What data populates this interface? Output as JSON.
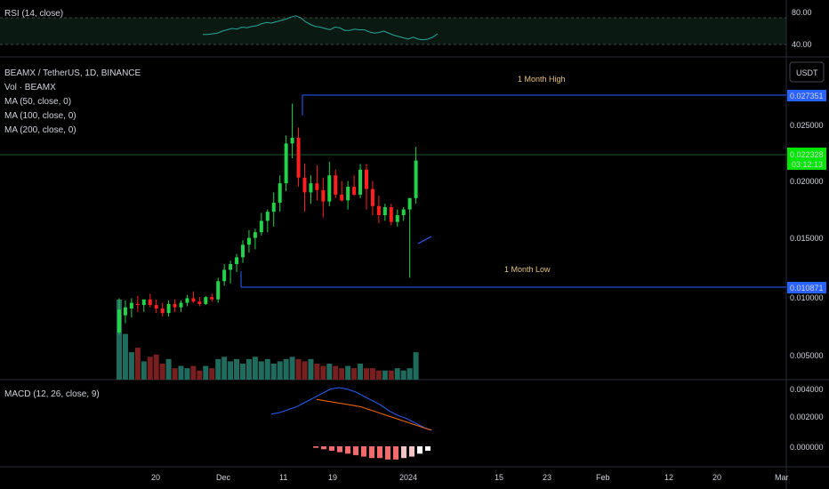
{
  "rsi": {
    "label": "RSI (14, close)",
    "levels": [
      "80.00",
      "40.00"
    ],
    "line_color": "#26a69a",
    "values": [
      55,
      55,
      56,
      57,
      60,
      62,
      64,
      63,
      66,
      65,
      67,
      68,
      71,
      73,
      72,
      74,
      76,
      78,
      81,
      83,
      80,
      74,
      70,
      67,
      66,
      64,
      62,
      66,
      65,
      61,
      61,
      63,
      62,
      62,
      59,
      57,
      58,
      60,
      57,
      54,
      52,
      50,
      48,
      51,
      48,
      47,
      48,
      51,
      56
    ]
  },
  "main": {
    "title": "BEAMX / TetherUS, 1D, BINANCE",
    "indicators": [
      "Vol · BEAMX",
      "MA (50, close, 0)",
      "MA (100, close, 0)",
      "MA (200, close, 0)"
    ],
    "currency_button": "USDT",
    "price_labels": [
      "0.025000",
      "0.020000",
      "0.015000",
      "0.010000",
      "0.005000"
    ],
    "month_high_label": "1 Month High",
    "month_low_label": "1 Month Low",
    "month_high_value": "0.027351",
    "month_low_value": "0.010871",
    "last_price": "0.022328",
    "countdown": "03:12:13"
  },
  "macd": {
    "label": "MACD (12, 26, close, 9)",
    "levels": [
      "0.004000",
      "0.002000",
      "0.000000"
    ],
    "macd_color": "#2962ff",
    "signal_color": "#ff6d00"
  },
  "time_axis": {
    "labels": [
      "20",
      "Dec",
      "11",
      "19",
      "2024",
      "15",
      "23",
      "Feb",
      "12",
      "20",
      "Mar"
    ]
  },
  "colors": {
    "up": "#22d34a",
    "down": "#ff1f1f",
    "level_line": "#2962ff",
    "last_price_bg": "#00e600"
  },
  "chart_data": {
    "type": "candlestick",
    "title": "BEAMX / TetherUS, 1D, BINANCE",
    "ylim": [
      0.0035,
      0.0305
    ],
    "x_ticks": [
      "20",
      "Dec",
      "11",
      "19",
      "2024",
      "15",
      "23",
      "Feb",
      "12",
      "20",
      "Mar"
    ],
    "month_high": 0.027351,
    "month_low": 0.010871,
    "last_price": 0.022328,
    "candles": [
      {
        "o": 0.0072,
        "h": 0.0102,
        "l": 0.007,
        "c": 0.0092
      },
      {
        "o": 0.0087,
        "h": 0.01,
        "l": 0.008,
        "c": 0.0094
      },
      {
        "o": 0.0093,
        "h": 0.0102,
        "l": 0.0085,
        "c": 0.0098
      },
      {
        "o": 0.0097,
        "h": 0.0104,
        "l": 0.009,
        "c": 0.0096
      },
      {
        "o": 0.0096,
        "h": 0.01,
        "l": 0.009,
        "c": 0.0101
      },
      {
        "o": 0.0101,
        "h": 0.0106,
        "l": 0.0094,
        "c": 0.0096
      },
      {
        "o": 0.0096,
        "h": 0.0101,
        "l": 0.0089,
        "c": 0.0093
      },
      {
        "o": 0.0093,
        "h": 0.0098,
        "l": 0.0086,
        "c": 0.0089
      },
      {
        "o": 0.0089,
        "h": 0.01,
        "l": 0.0086,
        "c": 0.0097
      },
      {
        "o": 0.0097,
        "h": 0.0101,
        "l": 0.009,
        "c": 0.0094
      },
      {
        "o": 0.0094,
        "h": 0.01,
        "l": 0.009,
        "c": 0.0098
      },
      {
        "o": 0.0098,
        "h": 0.0105,
        "l": 0.0095,
        "c": 0.0102
      },
      {
        "o": 0.0102,
        "h": 0.0108,
        "l": 0.0098,
        "c": 0.0099
      },
      {
        "o": 0.0099,
        "h": 0.0103,
        "l": 0.0095,
        "c": 0.0097
      },
      {
        "o": 0.0097,
        "h": 0.0104,
        "l": 0.0096,
        "c": 0.0103
      },
      {
        "o": 0.0103,
        "h": 0.0106,
        "l": 0.0099,
        "c": 0.0101
      },
      {
        "o": 0.0101,
        "h": 0.012,
        "l": 0.0098,
        "c": 0.0117
      },
      {
        "o": 0.0117,
        "h": 0.0132,
        "l": 0.0113,
        "c": 0.0127
      },
      {
        "o": 0.0127,
        "h": 0.0135,
        "l": 0.0115,
        "c": 0.0132
      },
      {
        "o": 0.0132,
        "h": 0.0141,
        "l": 0.0125,
        "c": 0.0138
      },
      {
        "o": 0.0138,
        "h": 0.0153,
        "l": 0.0133,
        "c": 0.0149
      },
      {
        "o": 0.0149,
        "h": 0.0162,
        "l": 0.0142,
        "c": 0.0155
      },
      {
        "o": 0.0155,
        "h": 0.0163,
        "l": 0.0145,
        "c": 0.016
      },
      {
        "o": 0.016,
        "h": 0.0177,
        "l": 0.0157,
        "c": 0.017
      },
      {
        "o": 0.017,
        "h": 0.018,
        "l": 0.016,
        "c": 0.0178
      },
      {
        "o": 0.0178,
        "h": 0.0195,
        "l": 0.0165,
        "c": 0.0186
      },
      {
        "o": 0.0186,
        "h": 0.021,
        "l": 0.0178,
        "c": 0.0203
      },
      {
        "o": 0.0203,
        "h": 0.0245,
        "l": 0.0196,
        "c": 0.0238
      },
      {
        "o": 0.0238,
        "h": 0.0273,
        "l": 0.0225,
        "c": 0.0243
      },
      {
        "o": 0.0243,
        "h": 0.0252,
        "l": 0.02,
        "c": 0.0208
      },
      {
        "o": 0.0208,
        "h": 0.022,
        "l": 0.0178,
        "c": 0.0195
      },
      {
        "o": 0.0195,
        "h": 0.021,
        "l": 0.0185,
        "c": 0.0203
      },
      {
        "o": 0.0203,
        "h": 0.0219,
        "l": 0.0188,
        "c": 0.0197
      },
      {
        "o": 0.0197,
        "h": 0.0208,
        "l": 0.0173,
        "c": 0.0187
      },
      {
        "o": 0.0187,
        "h": 0.0222,
        "l": 0.0183,
        "c": 0.021
      },
      {
        "o": 0.021,
        "h": 0.0215,
        "l": 0.019,
        "c": 0.0193
      },
      {
        "o": 0.0193,
        "h": 0.0205,
        "l": 0.0187,
        "c": 0.0188
      },
      {
        "o": 0.0188,
        "h": 0.0205,
        "l": 0.018,
        "c": 0.02
      },
      {
        "o": 0.02,
        "h": 0.021,
        "l": 0.0192,
        "c": 0.0193
      },
      {
        "o": 0.0193,
        "h": 0.022,
        "l": 0.019,
        "c": 0.0215
      },
      {
        "o": 0.0215,
        "h": 0.022,
        "l": 0.018,
        "c": 0.0198
      },
      {
        "o": 0.0198,
        "h": 0.0205,
        "l": 0.0175,
        "c": 0.0183
      },
      {
        "o": 0.0183,
        "h": 0.0192,
        "l": 0.0168,
        "c": 0.0175
      },
      {
        "o": 0.0175,
        "h": 0.0185,
        "l": 0.017,
        "c": 0.0182
      },
      {
        "o": 0.0182,
        "h": 0.0185,
        "l": 0.0166,
        "c": 0.0169
      },
      {
        "o": 0.0169,
        "h": 0.018,
        "l": 0.0165,
        "c": 0.0175
      },
      {
        "o": 0.0175,
        "h": 0.0182,
        "l": 0.017,
        "c": 0.018
      },
      {
        "o": 0.018,
        "h": 0.0188,
        "l": 0.012,
        "c": 0.019
      },
      {
        "o": 0.019,
        "h": 0.0235,
        "l": 0.0185,
        "c": 0.0223
      }
    ],
    "volume": [
      0.35,
      0.2,
      0.12,
      0.14,
      0.08,
      0.1,
      0.11,
      0.07,
      0.09,
      0.05,
      0.06,
      0.05,
      0.06,
      0.04,
      0.06,
      0.05,
      0.09,
      0.1,
      0.08,
      0.09,
      0.07,
      0.09,
      0.1,
      0.08,
      0.09,
      0.07,
      0.08,
      0.09,
      0.1,
      0.09,
      0.08,
      0.09,
      0.07,
      0.06,
      0.07,
      0.06,
      0.05,
      0.06,
      0.05,
      0.07,
      0.05,
      0.05,
      0.04,
      0.04,
      0.04,
      0.05,
      0.04,
      0.05,
      0.12
    ],
    "macd_line": [
      0.0022,
      0.0023,
      0.0025,
      0.0027,
      0.003,
      0.0033,
      0.0036,
      0.0039,
      0.004,
      0.0039,
      0.0037,
      0.0034,
      0.0031,
      0.0028,
      0.0024,
      0.0021,
      0.0019,
      0.0016,
      0.0013,
      0.0011
    ],
    "signal_line": [
      0.0032,
      0.0031,
      0.003,
      0.0029,
      0.0028,
      0.0027,
      0.0025,
      0.0023,
      0.0021,
      0.0019,
      0.0017,
      0.0015,
      0.0013,
      0.0011
    ],
    "macd_hist": [
      -0.0001,
      -0.0002,
      -0.0003,
      -0.0004,
      -0.0005,
      -0.0006,
      -0.0007,
      -0.0008,
      -0.0008,
      -0.0009,
      -0.0009,
      -0.0008,
      -0.0007,
      -0.0005,
      -0.0003
    ]
  }
}
